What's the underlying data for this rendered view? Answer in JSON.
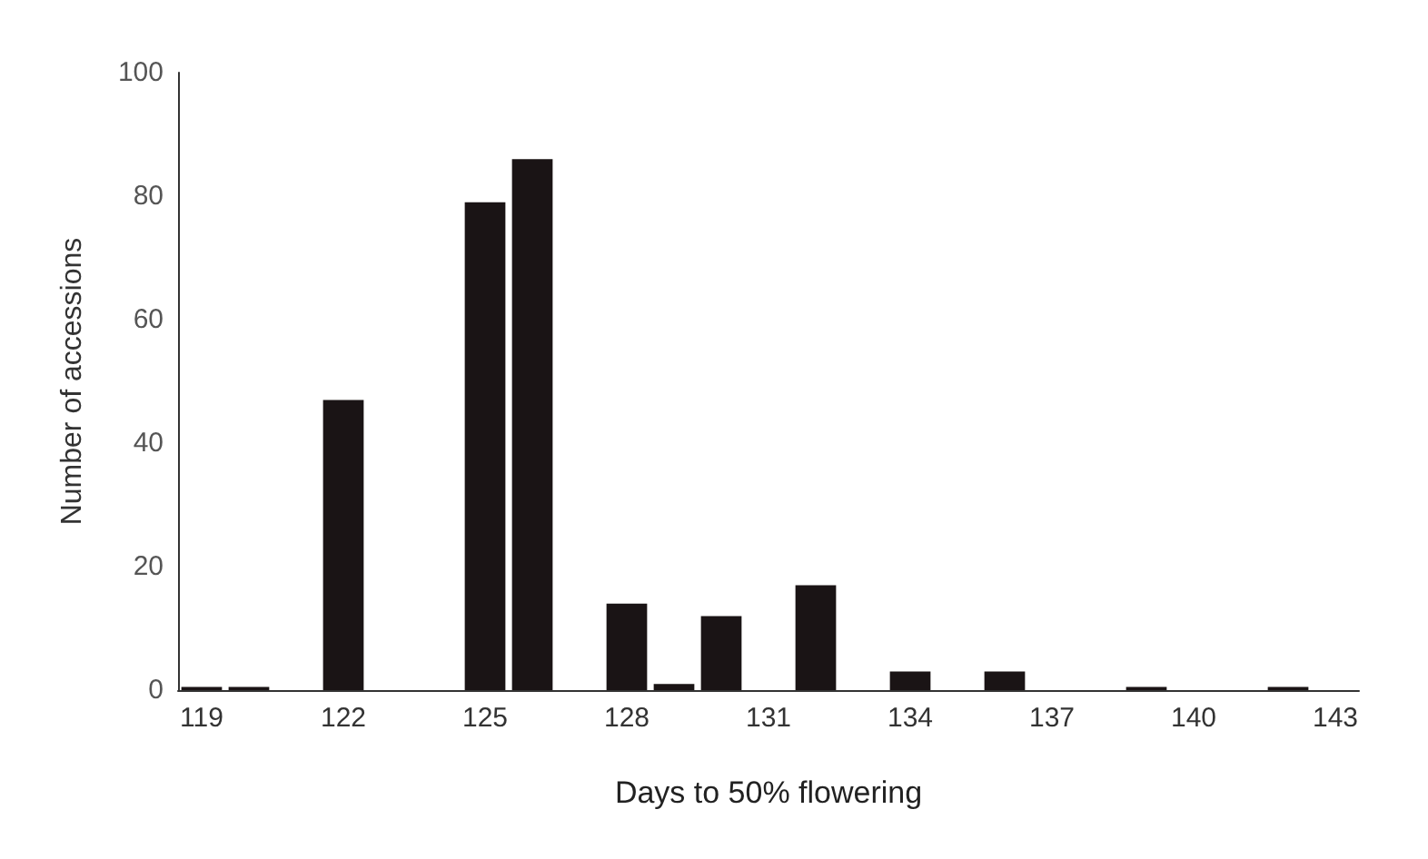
{
  "chart_data": {
    "type": "bar",
    "xlabel": "Days to 50% flowering",
    "ylabel": "Number of accessions",
    "categories": [
      "119",
      null,
      null,
      "122",
      null,
      null,
      "125",
      null,
      null,
      "128",
      null,
      null,
      "131",
      null,
      null,
      "134",
      null,
      null,
      "137",
      null,
      null,
      "140",
      null,
      null,
      "143"
    ],
    "values": [
      0.5,
      0.5,
      0,
      47,
      0,
      0,
      79,
      86,
      0,
      14,
      1,
      12,
      0,
      17,
      0,
      3,
      0,
      3,
      0,
      0,
      0.5,
      0,
      0,
      0.5,
      0
    ],
    "color": "#1a1415",
    "ylim": [
      0,
      100
    ],
    "yticks": [
      0,
      20,
      40,
      60,
      80,
      100
    ],
    "grid": false
  }
}
